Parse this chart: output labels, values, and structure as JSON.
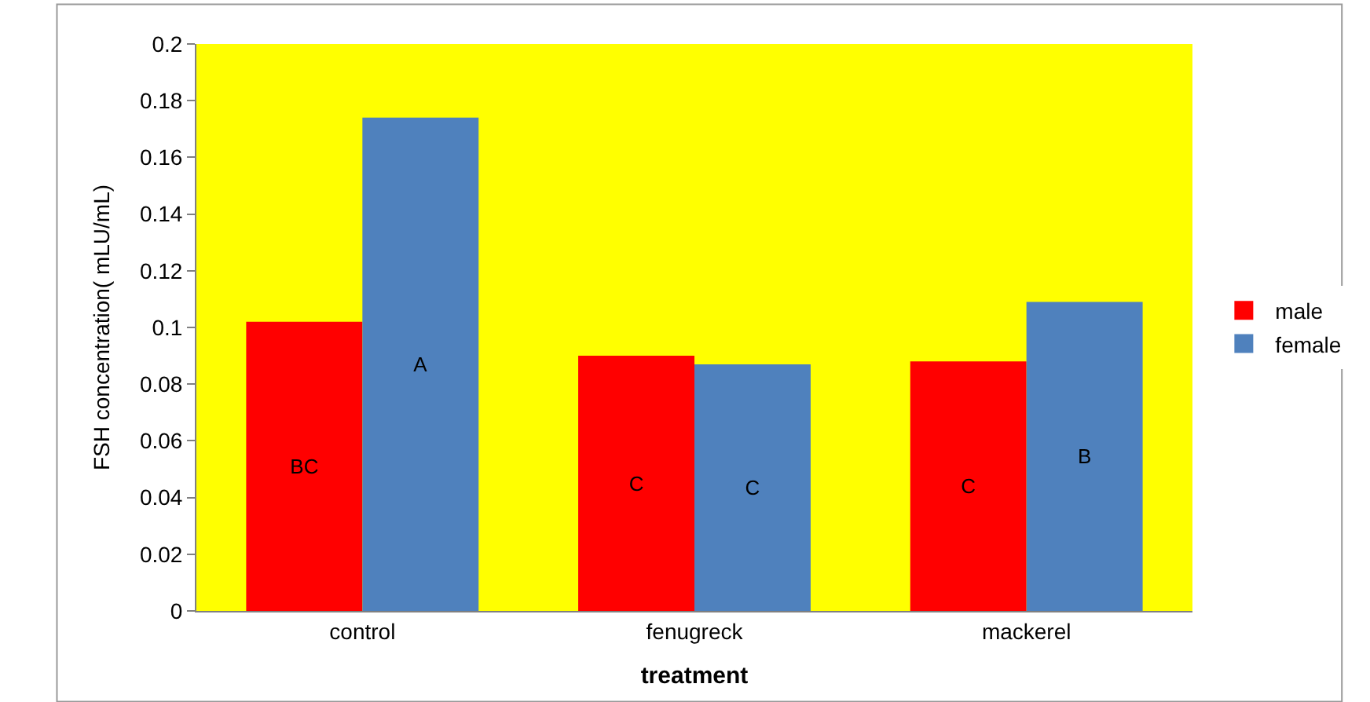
{
  "chart_data": {
    "type": "bar",
    "xlabel": "treatment",
    "ylabel": "FSH concentration( mLU/mL)",
    "categories": [
      "control",
      "fenugreck",
      "mackerel"
    ],
    "series": [
      {
        "name": "male",
        "color": "#ff0000",
        "values": [
          0.102,
          0.09,
          0.088
        ],
        "value_labels": [
          "BC",
          "C",
          "C"
        ]
      },
      {
        "name": "female",
        "color": "#4f81bd",
        "values": [
          0.174,
          0.087,
          0.109
        ],
        "value_labels": [
          "A",
          "C",
          "B"
        ]
      }
    ],
    "ylim": [
      0,
      0.2
    ],
    "yticks": [
      0,
      0.02,
      0.04,
      0.06,
      0.08,
      0.1,
      0.12,
      0.14,
      0.16,
      0.18,
      0.2
    ],
    "grid": false,
    "legend": "right"
  }
}
